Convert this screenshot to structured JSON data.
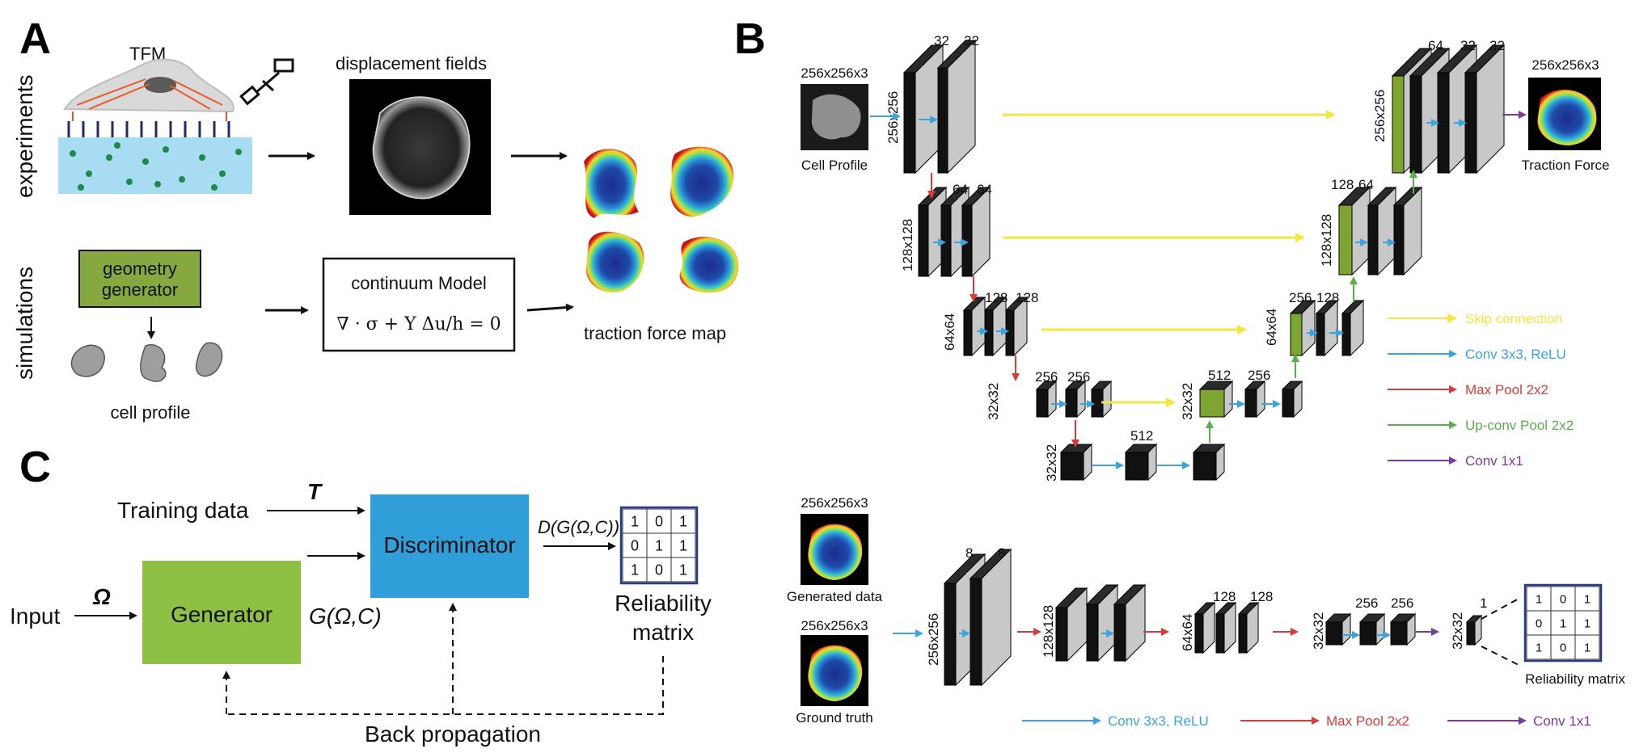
{
  "panel_a": {
    "letter": "A",
    "row_experiments": "experiments",
    "row_simulations": "simulations",
    "tfm": "TFM",
    "displacement": "displacement fields",
    "geometry_generator": [
      "geometry",
      "generator"
    ],
    "cell_profile": "cell profile",
    "continuum_model": "continuum Model",
    "equation": "∇ · σ + Y Δu/h = 0",
    "traction_map": "traction force map"
  },
  "panel_b": {
    "letter": "B",
    "input_dim": "256x256x3",
    "input_label": "Cell Profile",
    "output_dim": "256x256x3",
    "output_label": "Traction Force",
    "channels": {
      "enc1": [
        "32",
        "32"
      ],
      "enc2": [
        "64",
        "64"
      ],
      "enc3": [
        "128",
        "128"
      ],
      "enc4": [
        "256",
        "256"
      ],
      "bottleneck": "512",
      "dec4": [
        "512",
        "256"
      ],
      "dec3": [
        "256",
        "128"
      ],
      "dec2": [
        "128",
        "64"
      ],
      "dec1": [
        "64",
        "32",
        "32"
      ]
    },
    "sizes": {
      "s256": "256x256",
      "s128": "128x128",
      "s64": "64x64",
      "s32": "32x32"
    },
    "legend": [
      {
        "label": "Skip connection",
        "color": "#f2e640"
      },
      {
        "label": "Conv 3x3, ReLU",
        "color": "#3aa4e0"
      },
      {
        "label": "Max Pool 2x2",
        "color": "#d93a3a"
      },
      {
        "label": "Up-conv Pool 2x2",
        "color": "#58b048"
      },
      {
        "label": "Conv 1x1",
        "color": "#7b3a98"
      }
    ],
    "disc": {
      "generated_dim": "256x256x3",
      "generated_label": "Generated data",
      "truth_dim": "256x256x3",
      "truth_label": "Ground truth",
      "ch1": [
        "8",
        "8"
      ],
      "ch3": [
        "128",
        "128"
      ],
      "ch4": [
        "256",
        "256"
      ],
      "ch5": "1",
      "sizes": [
        "256x256",
        "128x128",
        "64x64",
        "32x32",
        "32x32"
      ],
      "matrix": [
        [
          "1",
          "0",
          "1"
        ],
        [
          "0",
          "1",
          "1"
        ],
        [
          "1",
          "0",
          "1"
        ]
      ],
      "matrix_label": "Reliability matrix",
      "legend": [
        {
          "label": "Conv 3x3, ReLU",
          "color": "#3aa4e0"
        },
        {
          "label": "Max Pool 2x2",
          "color": "#d93a3a"
        },
        {
          "label": "Conv 1x1",
          "color": "#7b3a98"
        }
      ]
    }
  },
  "panel_c": {
    "letter": "C",
    "training_data": "Training data",
    "t_symbol": "T",
    "discriminator": "Discriminator",
    "d_output": "D(G(Ω,C))",
    "input": "Input",
    "omega": "Ω",
    "generator": "Generator",
    "g_output": "G(Ω,C)",
    "matrix": [
      [
        "1",
        "0",
        "1"
      ],
      [
        "0",
        "1",
        "1"
      ],
      [
        "1",
        "0",
        "1"
      ]
    ],
    "reliability": [
      "Reliability",
      "matrix"
    ],
    "back_prop": "Back propagation"
  },
  "colors": {
    "gan_generator": "#8dc043",
    "gan_discriminator": "#2f9ed9",
    "geometry_box": "#86a83e",
    "substrate": "#a8dcf3",
    "green_layer": "#7ea531"
  }
}
